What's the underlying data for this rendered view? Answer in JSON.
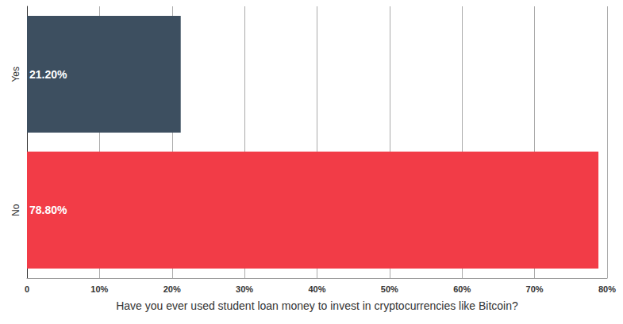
{
  "chart_data": {
    "type": "bar",
    "orientation": "horizontal",
    "x_label": "Have you ever used student loan money to invest in cryptocurrencies like Bitcoin?",
    "categories": [
      "Yes",
      "No"
    ],
    "values": [
      21.2,
      78.8
    ],
    "value_labels": [
      "21.20%",
      "78.80%"
    ],
    "colors": [
      "#3d4f60",
      "#f23c47"
    ],
    "xlim": [
      0,
      80
    ],
    "xticks": [
      0,
      {
        "value": 10,
        "label": "10%"
      },
      {
        "value": 20,
        "label": "20%"
      },
      {
        "value": 30,
        "label": "30%"
      },
      {
        "value": 40,
        "label": "40%"
      },
      {
        "value": 50,
        "label": "50%"
      },
      {
        "value": 60,
        "label": "60%"
      },
      {
        "value": 70,
        "label": "70%"
      },
      {
        "value": 80,
        "label": "80%"
      }
    ],
    "grid": true,
    "data_labels": true
  }
}
